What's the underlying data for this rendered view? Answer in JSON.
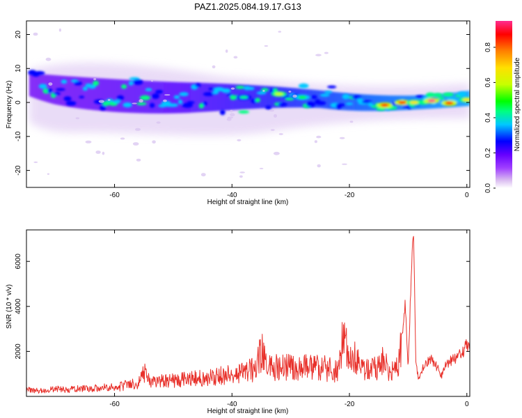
{
  "figure": {
    "title": "PAZ1.2025.084.19.17.G13"
  },
  "chart_data": [
    {
      "type": "heatmap",
      "xlabel": "Height of straight line (km)",
      "ylabel": "Frequency (Hz)",
      "xlim": [
        -75,
        0.5
      ],
      "ylim": [
        -25,
        24
      ],
      "x_ticks": [
        -60,
        -40,
        -20,
        0
      ],
      "y_ticks": [
        -20,
        -10,
        0,
        10,
        20
      ],
      "colorbar": {
        "label": "Normalized spectral amplitude",
        "range": [
          0,
          0.95
        ],
        "ticks": [
          0.0,
          0.2,
          0.4,
          0.6,
          0.8
        ],
        "colormap": [
          "#ffffff",
          "#d8b8f0",
          "#a040ff",
          "#6600ff",
          "#0000ff",
          "#00c8ff",
          "#00ff80",
          "#00ff00",
          "#c8ff00",
          "#ffe000",
          "#ff8000",
          "#ff0000",
          "#ff2d8f"
        ]
      },
      "ridge": [
        {
          "x": -74,
          "y": 5.5
        },
        {
          "x": -70,
          "y": 3.0
        },
        {
          "x": -65,
          "y": 2.0
        },
        {
          "x": -60,
          "y": 2.0
        },
        {
          "x": -55,
          "y": 3.5
        },
        {
          "x": -50,
          "y": 2.0
        },
        {
          "x": -45,
          "y": 1.0
        },
        {
          "x": -40,
          "y": 1.0
        },
        {
          "x": -35,
          "y": 1.5
        },
        {
          "x": -30,
          "y": 2.5
        },
        {
          "x": -25,
          "y": 1.5
        },
        {
          "x": -20,
          "y": 0.5
        },
        {
          "x": -15,
          "y": -1.0
        },
        {
          "x": -10,
          "y": 0.0
        },
        {
          "x": -5,
          "y": 1.0
        },
        {
          "x": 0,
          "y": 1.0
        }
      ],
      "peaks": [
        {
          "x": -32,
          "y": 2.5,
          "value": 0.62
        },
        {
          "x": -28,
          "y": 1.5,
          "value": 0.55
        },
        {
          "x": -38,
          "y": 1.5,
          "value": 0.45
        },
        {
          "x": -14,
          "y": -0.8,
          "value": 0.88
        },
        {
          "x": -11,
          "y": 0.0,
          "value": 0.9
        },
        {
          "x": -9,
          "y": 0.0,
          "value": 0.7
        },
        {
          "x": -6,
          "y": 0.5,
          "value": 0.93
        },
        {
          "x": -3,
          "y": -0.2,
          "value": 0.86
        },
        {
          "x": 0,
          "y": 0.8,
          "value": 0.7
        }
      ]
    },
    {
      "type": "line",
      "xlabel": "Height of straight line (km)",
      "ylabel": "SNR (10 * v/v)",
      "xlim": [
        -75,
        0.5
      ],
      "ylim": [
        0,
        7400
      ],
      "x_ticks": [
        -60,
        -40,
        -20,
        0
      ],
      "y_ticks": [
        2000,
        4000,
        6000
      ],
      "series": [
        {
          "color": "#e8302a",
          "points": [
            [
              -75,
              300
            ],
            [
              -72,
              250
            ],
            [
              -70,
              350
            ],
            [
              -68,
              300
            ],
            [
              -66,
              380
            ],
            [
              -64,
              350
            ],
            [
              -62,
              420
            ],
            [
              -60,
              400
            ],
            [
              -58,
              520
            ],
            [
              -56,
              600
            ],
            [
              -55,
              1100
            ],
            [
              -54,
              650
            ],
            [
              -52,
              700
            ],
            [
              -50,
              750
            ],
            [
              -48,
              800
            ],
            [
              -46,
              850
            ],
            [
              -44,
              900
            ],
            [
              -42,
              950
            ],
            [
              -40,
              1000
            ],
            [
              -38,
              1100
            ],
            [
              -36,
              1300
            ],
            [
              -35,
              2100
            ],
            [
              -34,
              1300
            ],
            [
              -32,
              1350
            ],
            [
              -30,
              1400
            ],
            [
              -28,
              1350
            ],
            [
              -26,
              1450
            ],
            [
              -24,
              1300
            ],
            [
              -22,
              1100
            ],
            [
              -21,
              2800
            ],
            [
              -20,
              1500
            ],
            [
              -19,
              1800
            ],
            [
              -18,
              1200
            ],
            [
              -16,
              1300
            ],
            [
              -15,
              1500
            ],
            [
              -14,
              1600
            ],
            [
              -13,
              1200
            ],
            [
              -12,
              1200
            ],
            [
              -11,
              2600
            ],
            [
              -10.5,
              4200
            ],
            [
              -10,
              1200
            ],
            [
              -9.5,
              5200
            ],
            [
              -9.2,
              7300
            ],
            [
              -9,
              6500
            ],
            [
              -8.7,
              1600
            ],
            [
              -8.2,
              700
            ],
            [
              -7.5,
              1300
            ],
            [
              -6,
              1700
            ],
            [
              -5,
              1300
            ],
            [
              -4.3,
              900
            ],
            [
              -3.5,
              1500
            ],
            [
              -2,
              1700
            ],
            [
              -1,
              1900
            ],
            [
              0,
              2300
            ],
            [
              0.5,
              2400
            ]
          ]
        }
      ]
    }
  ]
}
